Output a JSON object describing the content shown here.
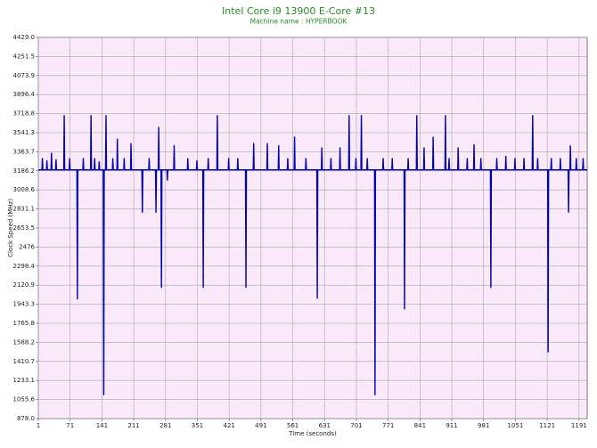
{
  "chart_data": {
    "type": "line",
    "title": "Intel Core i9 13900 E-Core #13",
    "subtitle": "Machine name : HYPERBOOK",
    "x_label": "Time (seconds)",
    "y_label": "Clock Speed (MHz)",
    "color": "#0000b4",
    "grid": true,
    "xlim": [
      1,
      1209
    ],
    "ylim": [
      878,
      4429
    ],
    "xticks": [
      1,
      71,
      141,
      211,
      281,
      351,
      421,
      491,
      561,
      631,
      701,
      771,
      841,
      911,
      981,
      1051,
      1121,
      1191
    ],
    "yticks": [
      {
        "value": 878,
        "label": "878.0"
      },
      1055.6,
      1233.1,
      1410.7,
      1588.2,
      1765.8,
      1943.3,
      2120.9,
      2298.4,
      2476,
      2653.5,
      2831.1,
      3008.6,
      3186.2,
      3363.7,
      3541.3,
      3718.8,
      3896.4,
      4073.9,
      4251.5,
      {
        "value": 4429,
        "label": "4429.0"
      }
    ],
    "x": [
      1,
      9,
      10,
      11,
      19,
      20,
      21,
      29,
      30,
      31,
      39,
      40,
      41,
      57,
      58,
      59,
      69,
      70,
      71,
      86,
      87,
      88,
      99,
      100,
      101,
      116,
      117,
      118,
      124,
      125,
      126,
      134,
      135,
      136,
      144,
      145,
      146,
      149,
      150,
      151,
      164,
      165,
      166,
      174,
      175,
      176,
      189,
      190,
      191,
      204,
      205,
      206,
      229,
      230,
      231,
      244,
      245,
      246,
      259,
      260,
      261,
      265,
      266,
      267,
      271,
      272,
      273,
      284,
      285,
      286,
      299,
      300,
      301,
      329,
      330,
      331,
      349,
      350,
      351,
      363,
      364,
      365,
      374,
      375,
      376,
      394,
      395,
      396,
      419,
      420,
      421,
      439,
      440,
      441,
      457,
      458,
      459,
      474,
      475,
      476,
      504,
      505,
      506,
      529,
      530,
      531,
      549,
      550,
      551,
      564,
      565,
      566,
      589,
      590,
      591,
      614,
      615,
      616,
      624,
      625,
      626,
      644,
      645,
      646,
      664,
      665,
      666,
      684,
      685,
      686,
      699,
      700,
      701,
      711,
      712,
      713,
      724,
      725,
      726,
      741,
      742,
      743,
      759,
      760,
      761,
      779,
      780,
      781,
      806,
      807,
      808,
      814,
      815,
      816,
      833,
      834,
      835,
      849,
      850,
      851,
      869,
      870,
      871,
      896,
      897,
      898,
      904,
      905,
      906,
      924,
      925,
      926,
      944,
      945,
      946,
      959,
      960,
      961,
      974,
      975,
      976,
      996,
      997,
      998,
      1009,
      1010,
      1011,
      1029,
      1030,
      1031,
      1049,
      1050,
      1051,
      1069,
      1070,
      1071,
      1088,
      1089,
      1090,
      1099,
      1100,
      1101,
      1122,
      1123,
      1124,
      1129,
      1130,
      1131,
      1149,
      1150,
      1151,
      1167,
      1168,
      1169,
      1171,
      1172,
      1173,
      1184,
      1185,
      1186,
      1199,
      1200,
      1201,
      1209
    ],
    "values": [
      3195,
      3195,
      3300,
      3195,
      3195,
      3280,
      3195,
      3195,
      3350,
      3195,
      3195,
      3290,
      3195,
      3195,
      3700,
      3195,
      3195,
      3300,
      3195,
      3195,
      1993,
      3195,
      3195,
      3300,
      3195,
      3195,
      3700,
      3195,
      3195,
      3300,
      3195,
      3195,
      3270,
      3195,
      3195,
      1100,
      3195,
      3195,
      3700,
      3195,
      3195,
      3300,
      3195,
      3195,
      3480,
      3195,
      3195,
      3300,
      3195,
      3195,
      3440,
      3195,
      3195,
      2800,
      3195,
      3195,
      3300,
      3195,
      3195,
      2800,
      3195,
      3195,
      3590,
      3195,
      3195,
      2100,
      3195,
      3195,
      3100,
      3195,
      3195,
      3420,
      3195,
      3195,
      3300,
      3195,
      3195,
      3280,
      3195,
      3195,
      2100,
      3195,
      3195,
      3300,
      3195,
      3195,
      3700,
      3195,
      3195,
      3300,
      3195,
      3195,
      3300,
      3195,
      3195,
      2100,
      3195,
      3195,
      3440,
      3195,
      3195,
      3440,
      3195,
      3195,
      3420,
      3195,
      3195,
      3300,
      3195,
      3195,
      3500,
      3195,
      3195,
      3300,
      3195,
      3195,
      2000,
      3195,
      3195,
      3400,
      3195,
      3195,
      3300,
      3195,
      3195,
      3400,
      3195,
      3195,
      3700,
      3195,
      3195,
      3300,
      3195,
      3195,
      3700,
      3195,
      3195,
      3300,
      3195,
      3195,
      1100,
      3195,
      3195,
      3300,
      3195,
      3195,
      3300,
      3195,
      3195,
      1900,
      3195,
      3195,
      3300,
      3195,
      3195,
      3700,
      3195,
      3195,
      3400,
      3195,
      3195,
      3500,
      3195,
      3195,
      3700,
      3195,
      3195,
      3300,
      3195,
      3195,
      3400,
      3195,
      3195,
      3300,
      3195,
      3195,
      3430,
      3195,
      3195,
      3300,
      3195,
      3195,
      2100,
      3195,
      3195,
      3300,
      3195,
      3195,
      3320,
      3195,
      3195,
      3300,
      3195,
      3195,
      3300,
      3195,
      3195,
      3700,
      3195,
      3195,
      3300,
      3195,
      3195,
      1500,
      3195,
      3195,
      3300,
      3195,
      3195,
      3300,
      3195,
      3195,
      2800,
      3195,
      3195,
      3420,
      3195,
      3195,
      3300,
      3195,
      3195,
      3300,
      3195,
      3195
    ]
  }
}
